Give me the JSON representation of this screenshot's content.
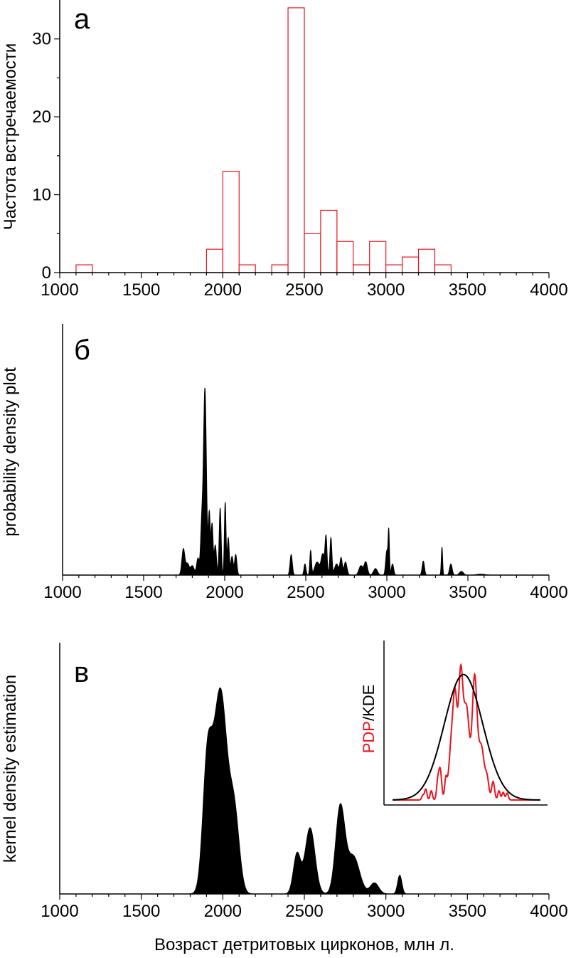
{
  "chart_data": [
    {
      "panel_letter": "а",
      "type": "bar",
      "ylabel": "Частота встречаемости",
      "xlim": [
        1000,
        4000
      ],
      "ylim": [
        0,
        35
      ],
      "xticks": [
        "1000",
        "1500",
        "2000",
        "2500",
        "3000",
        "3500",
        "4000"
      ],
      "yticks": [
        "0",
        "10",
        "20",
        "30"
      ],
      "bin_width": 100,
      "color": "#e8141e",
      "bins": [
        {
          "x0": 1100,
          "count": 1
        },
        {
          "x0": 1900,
          "count": 3
        },
        {
          "x0": 2000,
          "count": 13
        },
        {
          "x0": 2100,
          "count": 1
        },
        {
          "x0": 2300,
          "count": 1
        },
        {
          "x0": 2400,
          "count": 34
        },
        {
          "x0": 2500,
          "count": 5
        },
        {
          "x0": 2600,
          "count": 8
        },
        {
          "x0": 2700,
          "count": 4
        },
        {
          "x0": 2800,
          "count": 1
        },
        {
          "x0": 2900,
          "count": 4
        },
        {
          "x0": 3000,
          "count": 1
        },
        {
          "x0": 3100,
          "count": 2
        },
        {
          "x0": 3200,
          "count": 3
        },
        {
          "x0": 3300,
          "count": 1
        }
      ]
    },
    {
      "panel_letter": "б",
      "type": "area",
      "ylabel": "probability density plot",
      "xlim": [
        1000,
        4000
      ],
      "xticks": [
        "1000",
        "1500",
        "2000",
        "2500",
        "3000",
        "3500",
        "4000"
      ],
      "color": "#000000",
      "peaks": [
        {
          "x": 1745,
          "h": 0.14,
          "w": 9
        },
        {
          "x": 1770,
          "h": 0.06,
          "w": 10
        },
        {
          "x": 1800,
          "h": 0.05,
          "w": 12
        },
        {
          "x": 1835,
          "h": 0.09,
          "w": 8
        },
        {
          "x": 1858,
          "h": 0.25,
          "w": 7
        },
        {
          "x": 1878,
          "h": 1.0,
          "w": 9
        },
        {
          "x": 1905,
          "h": 0.33,
          "w": 6
        },
        {
          "x": 1922,
          "h": 0.27,
          "w": 6
        },
        {
          "x": 1942,
          "h": 0.16,
          "w": 7
        },
        {
          "x": 1972,
          "h": 0.36,
          "w": 6
        },
        {
          "x": 2003,
          "h": 0.39,
          "w": 5
        },
        {
          "x": 2022,
          "h": 0.2,
          "w": 6
        },
        {
          "x": 2045,
          "h": 0.1,
          "w": 7
        },
        {
          "x": 2068,
          "h": 0.11,
          "w": 7
        },
        {
          "x": 2410,
          "h": 0.11,
          "w": 7
        },
        {
          "x": 2495,
          "h": 0.06,
          "w": 6
        },
        {
          "x": 2530,
          "h": 0.13,
          "w": 5
        },
        {
          "x": 2570,
          "h": 0.07,
          "w": 15
        },
        {
          "x": 2605,
          "h": 0.11,
          "w": 10
        },
        {
          "x": 2625,
          "h": 0.2,
          "w": 6
        },
        {
          "x": 2655,
          "h": 0.2,
          "w": 6
        },
        {
          "x": 2690,
          "h": 0.06,
          "w": 12
        },
        {
          "x": 2718,
          "h": 0.09,
          "w": 7
        },
        {
          "x": 2745,
          "h": 0.07,
          "w": 9
        },
        {
          "x": 2840,
          "h": 0.05,
          "w": 12
        },
        {
          "x": 2870,
          "h": 0.07,
          "w": 10
        },
        {
          "x": 2930,
          "h": 0.035,
          "w": 12
        },
        {
          "x": 3000,
          "h": 0.13,
          "w": 7
        },
        {
          "x": 3012,
          "h": 0.22,
          "w": 4
        },
        {
          "x": 3035,
          "h": 0.06,
          "w": 7
        },
        {
          "x": 3225,
          "h": 0.075,
          "w": 7
        },
        {
          "x": 3340,
          "h": 0.15,
          "w": 4
        },
        {
          "x": 3395,
          "h": 0.06,
          "w": 8
        },
        {
          "x": 3460,
          "h": 0.02,
          "w": 12
        },
        {
          "x": 3580,
          "h": 0.005,
          "w": 25
        }
      ]
    },
    {
      "panel_letter": "в",
      "type": "area",
      "ylabel": "kernel density estimation",
      "xlabel": "Возраст детритовых цирконов, млн л.",
      "xlim": [
        1000,
        4000
      ],
      "xticks": [
        "1000",
        "1500",
        "2000",
        "2500",
        "3000",
        "3500",
        "4000"
      ],
      "color": "#000000",
      "peaks": [
        {
          "x": 1905,
          "h": 0.55,
          "w": 28
        },
        {
          "x": 1985,
          "h": 0.92,
          "w": 42
        },
        {
          "x": 2072,
          "h": 0.33,
          "w": 30
        },
        {
          "x": 2455,
          "h": 0.18,
          "w": 22
        },
        {
          "x": 2535,
          "h": 0.3,
          "w": 30
        },
        {
          "x": 2720,
          "h": 0.39,
          "w": 28
        },
        {
          "x": 2800,
          "h": 0.17,
          "w": 38
        },
        {
          "x": 2930,
          "h": 0.05,
          "w": 26
        },
        {
          "x": 3085,
          "h": 0.085,
          "w": 13
        }
      ]
    }
  ],
  "inset": {
    "label_red": "PDP",
    "label_black": "/KDE",
    "pdp_color": "#e8141e",
    "kde_color": "#000000",
    "xlim": [
      0,
      1
    ],
    "ylim": [
      0,
      1
    ],
    "kde": {
      "center": 0.48,
      "height": 0.82,
      "width": 0.13
    },
    "pdp_peaks": [
      {
        "x": 0.205,
        "h": 0.03,
        "w": 0.008
      },
      {
        "x": 0.225,
        "h": 0.07,
        "w": 0.008
      },
      {
        "x": 0.262,
        "h": 0.06,
        "w": 0.008
      },
      {
        "x": 0.305,
        "h": 0.1,
        "w": 0.008
      },
      {
        "x": 0.322,
        "h": 0.2,
        "w": 0.01
      },
      {
        "x": 0.36,
        "h": 0.12,
        "w": 0.008
      },
      {
        "x": 0.405,
        "h": 0.45,
        "w": 0.02
      },
      {
        "x": 0.425,
        "h": 0.4,
        "w": 0.012
      },
      {
        "x": 0.46,
        "h": 0.78,
        "w": 0.015
      },
      {
        "x": 0.5,
        "h": 0.6,
        "w": 0.02
      },
      {
        "x": 0.555,
        "h": 0.78,
        "w": 0.016
      },
      {
        "x": 0.6,
        "h": 0.35,
        "w": 0.02
      },
      {
        "x": 0.64,
        "h": 0.12,
        "w": 0.012
      },
      {
        "x": 0.68,
        "h": 0.12,
        "w": 0.01
      },
      {
        "x": 0.72,
        "h": 0.06,
        "w": 0.008
      },
      {
        "x": 0.748,
        "h": 0.05,
        "w": 0.008
      },
      {
        "x": 0.775,
        "h": 0.045,
        "w": 0.008
      }
    ]
  }
}
